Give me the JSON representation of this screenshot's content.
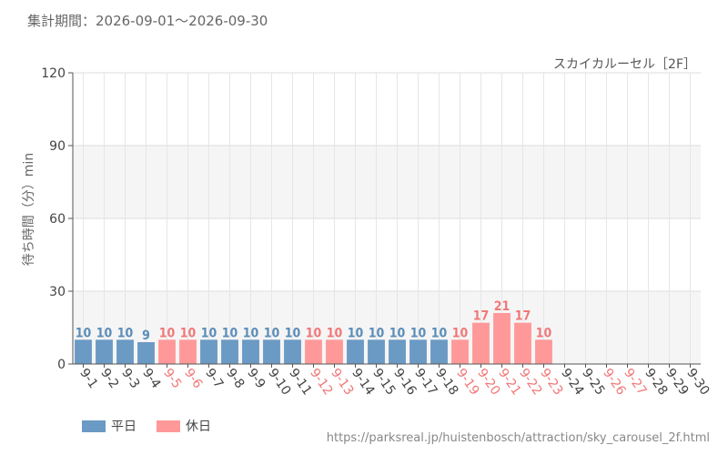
{
  "period_label": "集計期間：2026-09-01～2026-09-30",
  "source_url": "https://parksreal.jp/huistenbosch/attraction/sky_carousel_2f.html",
  "colors": {
    "weekday": "#6b9ac4",
    "holiday": "#ff9999",
    "weekday_label": "#5b8db8",
    "holiday_label": "#f07878"
  },
  "legend": [
    {
      "key": "weekday",
      "label": "平日"
    },
    {
      "key": "holiday",
      "label": "休日"
    }
  ],
  "chart_data": {
    "type": "bar",
    "title": "スカイカルーセル［2F］",
    "ylabel": "待ち時間（分）min",
    "xlabel": "",
    "ylim": [
      0,
      120
    ],
    "yticks": [
      0,
      30,
      60,
      90,
      120
    ],
    "grid": true,
    "legend_position": "bottom-left",
    "categories": [
      "9-1",
      "9-2",
      "9-3",
      "9-4",
      "9-5",
      "9-6",
      "9-7",
      "9-8",
      "9-9",
      "9-10",
      "9-11",
      "9-12",
      "9-13",
      "9-14",
      "9-15",
      "9-16",
      "9-17",
      "9-18",
      "9-19",
      "9-20",
      "9-21",
      "9-22",
      "9-23",
      "9-24",
      "9-25",
      "9-26",
      "9-27",
      "9-28",
      "9-29",
      "9-30"
    ],
    "day_types": [
      "weekday",
      "weekday",
      "weekday",
      "weekday",
      "holiday",
      "holiday",
      "weekday",
      "weekday",
      "weekday",
      "weekday",
      "weekday",
      "holiday",
      "holiday",
      "weekday",
      "weekday",
      "weekday",
      "weekday",
      "weekday",
      "holiday",
      "holiday",
      "holiday",
      "holiday",
      "holiday",
      "weekday",
      "weekday",
      "holiday",
      "holiday",
      "weekday",
      "weekday",
      "weekday"
    ],
    "values": [
      10,
      10,
      10,
      9,
      10,
      10,
      10,
      10,
      10,
      10,
      10,
      10,
      10,
      10,
      10,
      10,
      10,
      10,
      10,
      17,
      21,
      17,
      10,
      null,
      null,
      null,
      null,
      null,
      null,
      null
    ]
  }
}
